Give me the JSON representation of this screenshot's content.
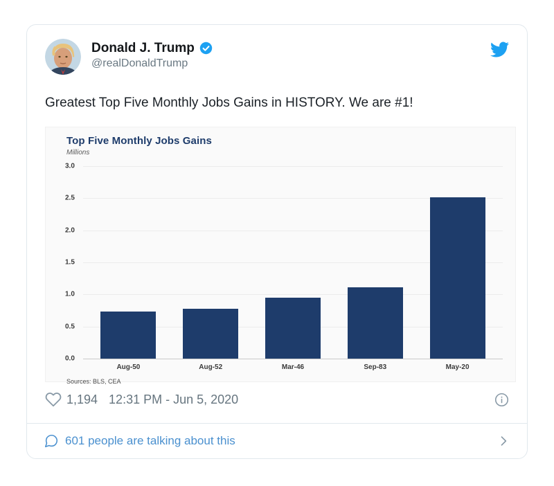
{
  "tweet": {
    "author_name": "Donald J. Trump",
    "author_handle": "@realDonaldTrump",
    "verified": true,
    "text": "Greatest Top Five Monthly Jobs Gains in HISTORY. We are #1!",
    "like_count": "1,194",
    "timestamp": "12:31 PM - Jun 5, 2020",
    "footer_link": "601 people are talking about this"
  },
  "chart_data": {
    "type": "bar",
    "title": "Top Five Monthly Jobs Gains",
    "subtitle": "Millions",
    "categories": [
      "Aug-50",
      "Aug-52",
      "Mar-46",
      "Sep-83",
      "May-20"
    ],
    "values": [
      0.73,
      0.78,
      0.95,
      1.11,
      2.51
    ],
    "ylim": [
      0,
      3.0
    ],
    "yticks": [
      3.0,
      2.5,
      2.0,
      1.5,
      1.0,
      0.5,
      0.0
    ],
    "xlabel": "",
    "ylabel": "Millions",
    "source": "Sources: BLS, CEA",
    "grid": true,
    "legend": false,
    "bar_color": "#1e3c6b"
  },
  "icons": {
    "brand": "twitter-bird",
    "verified_badge": "blue-check",
    "like": "heart-outline",
    "info": "info-circle",
    "reply": "speech-bubble",
    "more": "chevron-right"
  },
  "colors": {
    "brand_blue": "#1da1f2",
    "link_blue": "#4a90cf",
    "bar_navy": "#1e3c6b",
    "muted_gray": "#66757f",
    "border_gray": "#e1e8ed"
  }
}
